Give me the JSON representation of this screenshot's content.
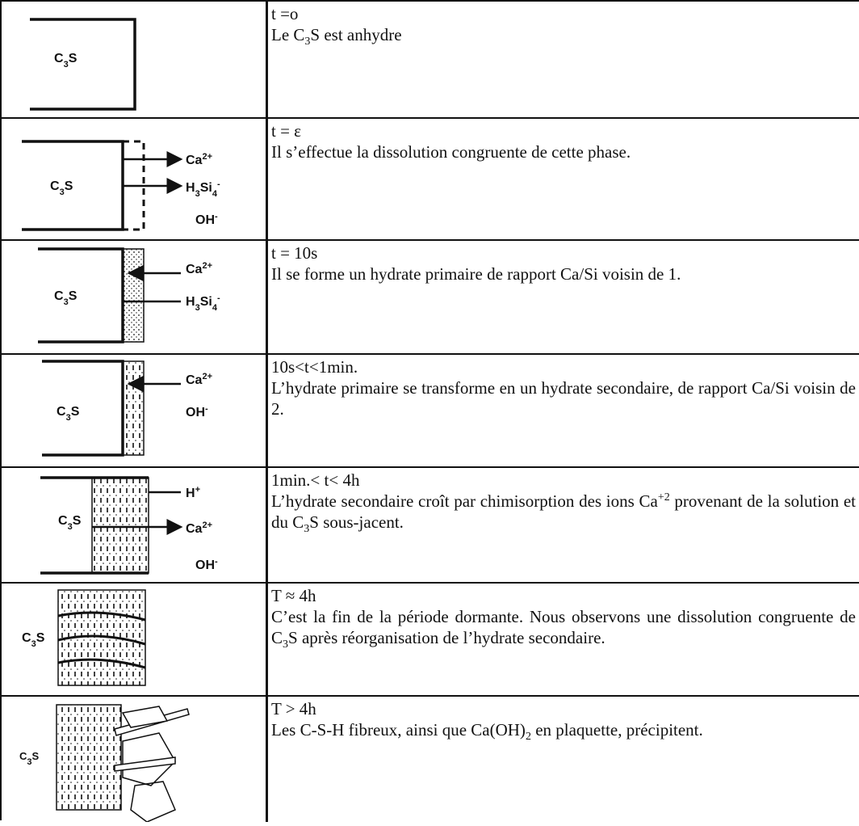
{
  "rows": [
    {
      "time": [
        "t =o"
      ],
      "text": [
        "Le C",
        {
          "sub": "3"
        },
        "S est anhydre"
      ],
      "labels": [
        [
          "C",
          {
            "sub": "3"
          },
          "S"
        ]
      ]
    },
    {
      "time": [
        "t = ε"
      ],
      "text": [
        "Il s’effectue la dissolution congruente de cette phase."
      ],
      "labels": [
        [
          "C",
          {
            "sub": "3"
          },
          "S"
        ],
        [
          "Ca",
          {
            "sup": "2+"
          }
        ],
        [
          "H",
          {
            "sub": "3"
          },
          "Si",
          {
            "sub": "4"
          },
          {
            "sup": "-"
          }
        ],
        [
          "OH",
          {
            "sup": "-"
          }
        ]
      ]
    },
    {
      "time": [
        "t = 10s"
      ],
      "text": [
        "Il se forme un hydrate primaire de rapport Ca/Si voisin de 1."
      ],
      "labels": [
        [
          "C",
          {
            "sub": "3"
          },
          "S"
        ],
        [
          "Ca",
          {
            "sup": "2+"
          }
        ],
        [
          "H",
          {
            "sub": "3"
          },
          "Si",
          {
            "sub": "4"
          },
          {
            "sup": "-"
          }
        ]
      ]
    },
    {
      "time": [
        "10s<t<1min."
      ],
      "text": [
        "L’hydrate primaire se transforme en un hydrate secondaire, de rapport Ca/Si voisin de 2."
      ],
      "labels": [
        [
          "C",
          {
            "sub": "3"
          },
          "S"
        ],
        [
          "Ca",
          {
            "sup": "2+"
          }
        ],
        [
          "OH",
          {
            "sup": "-"
          }
        ]
      ]
    },
    {
      "time": [
        "1min.< t< 4h"
      ],
      "text": [
        "L’hydrate secondaire croît par chimisorption des ions Ca",
        {
          "sup": "+2"
        },
        " provenant de la solution et du C",
        {
          "sub": "3"
        },
        "S sous-jacent."
      ],
      "labels": [
        [
          "H",
          {
            "sup": "+"
          }
        ],
        [
          "C",
          {
            "sub": "3"
          },
          "S"
        ],
        [
          "Ca",
          {
            "sup": "2+"
          }
        ],
        [
          "OH",
          {
            "sup": "-"
          }
        ]
      ]
    },
    {
      "time": [
        "T ≈ 4h"
      ],
      "text": [
        "C’est la fin de la période dormante. Nous observons une dissolution congruente de C",
        {
          "sub": "3"
        },
        "S après réorganisation de l’hydrate secondaire."
      ],
      "labels": [
        [
          "C",
          {
            "sub": "3"
          },
          "S"
        ]
      ]
    },
    {
      "time": [
        "T > 4h"
      ],
      "text": [
        "Les C-S-H fibreux, ainsi que Ca(OH)",
        {
          "sub": "2"
        },
        " en plaquette, précipitent."
      ],
      "labels": [
        [
          "C",
          {
            "sub": "3"
          },
          "S"
        ]
      ]
    }
  ]
}
